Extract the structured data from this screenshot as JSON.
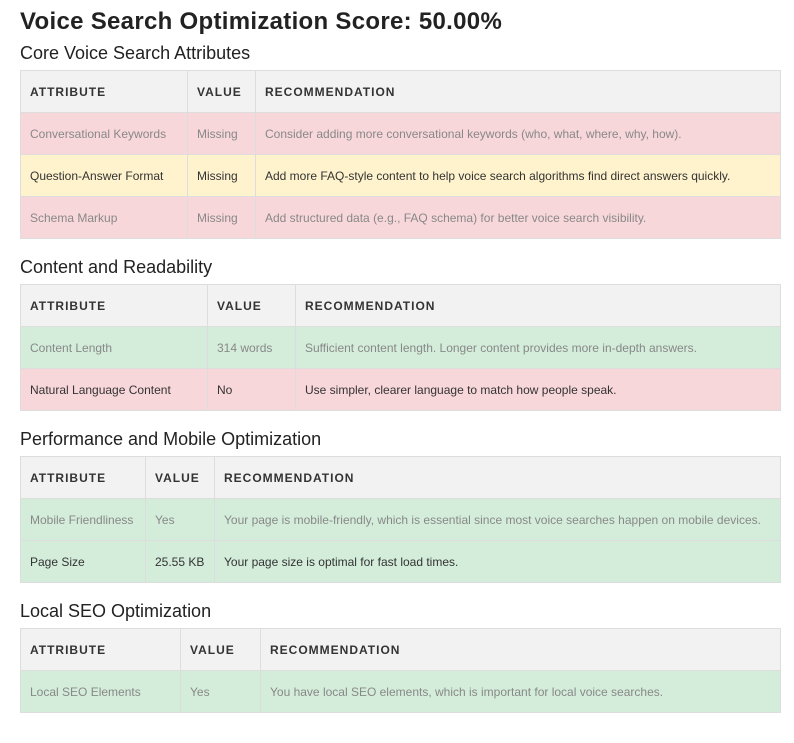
{
  "title": "Voice Search Optimization Score: 50.00%",
  "sections": [
    {
      "heading": "Core Voice Search Attributes",
      "columns": [
        "ATTRIBUTE",
        "VALUE",
        "RECOMMENDATION"
      ],
      "rows": [
        [
          "Conversational Keywords",
          "Missing",
          "Consider adding more conversational keywords (who, what, where, why, how)."
        ],
        [
          "Question-Answer Format",
          "Missing",
          "Add more FAQ-style content to help voice search algorithms find direct answers quickly."
        ],
        [
          "Schema Markup",
          "Missing",
          "Add structured data (e.g., FAQ schema) for better voice search visibility."
        ]
      ]
    },
    {
      "heading": "Content and Readability",
      "columns": [
        "ATTRIBUTE",
        "VALUE",
        "RECOMMENDATION"
      ],
      "rows": [
        [
          "Content Length",
          "314 words",
          "Sufficient content length. Longer content provides more in-depth answers."
        ],
        [
          "Natural Language Content",
          "No",
          "Use simpler, clearer language to match how people speak."
        ]
      ]
    },
    {
      "heading": "Performance and Mobile Optimization",
      "columns": [
        "ATTRIBUTE",
        "VALUE",
        "RECOMMENDATION"
      ],
      "rows": [
        [
          "Mobile Friendliness",
          "Yes",
          "Your page is mobile-friendly, which is essential since most voice searches happen on mobile devices."
        ],
        [
          "Page Size",
          "25.55 KB",
          "Your page size is optimal for fast load times."
        ]
      ]
    },
    {
      "heading": "Local SEO Optimization",
      "columns": [
        "ATTRIBUTE",
        "VALUE",
        "RECOMMENDATION"
      ],
      "rows": [
        [
          "Local SEO Elements",
          "Yes",
          "You have local SEO elements, which is important for local voice searches."
        ]
      ]
    }
  ]
}
